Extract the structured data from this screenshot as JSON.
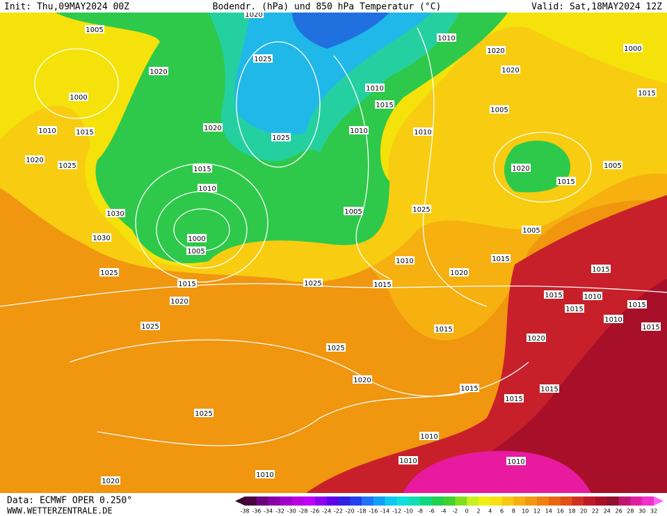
{
  "header": {
    "init": "Init: Thu,09MAY2024 00Z",
    "title": "Bodendr. (hPa) und 850 hPa Temperatur (°C)",
    "valid": "Valid: Sat,18MAY2024 12Z"
  },
  "footer": {
    "data": "Data: ECMWF OPER 0.250°",
    "website": "WWW.WETTERZENTRALE.DE"
  },
  "colorbar": [
    -38,
    -36,
    -34,
    -32,
    -30,
    -28,
    -26,
    -24,
    -22,
    -20,
    -18,
    -16,
    -14,
    -12,
    -10,
    -8,
    -6,
    -4,
    -2,
    0,
    2,
    4,
    6,
    8,
    10,
    12,
    14,
    16,
    18,
    20,
    22,
    24,
    26,
    28,
    30,
    32
  ],
  "pressure_labels": [
    1020,
    1005,
    1020,
    1000,
    1010,
    1015,
    1020,
    1025,
    1030,
    1030,
    1025,
    1020,
    1025,
    1015,
    1010,
    1000,
    1005,
    1025,
    1015,
    1020,
    1025,
    1025,
    1025,
    1020,
    1025,
    1020,
    1010,
    1010,
    1020,
    1010,
    1015,
    1020,
    1005,
    1010,
    1010,
    1005,
    1025,
    1020,
    1015,
    1005,
    1000,
    1015,
    1005,
    1015,
    1010,
    1020,
    1015,
    1015,
    1010,
    1015,
    1015,
    1015,
    1010,
    1015,
    1015,
    1020,
    1015,
    1015,
    1015,
    1010,
    1010,
    1010
  ]
}
